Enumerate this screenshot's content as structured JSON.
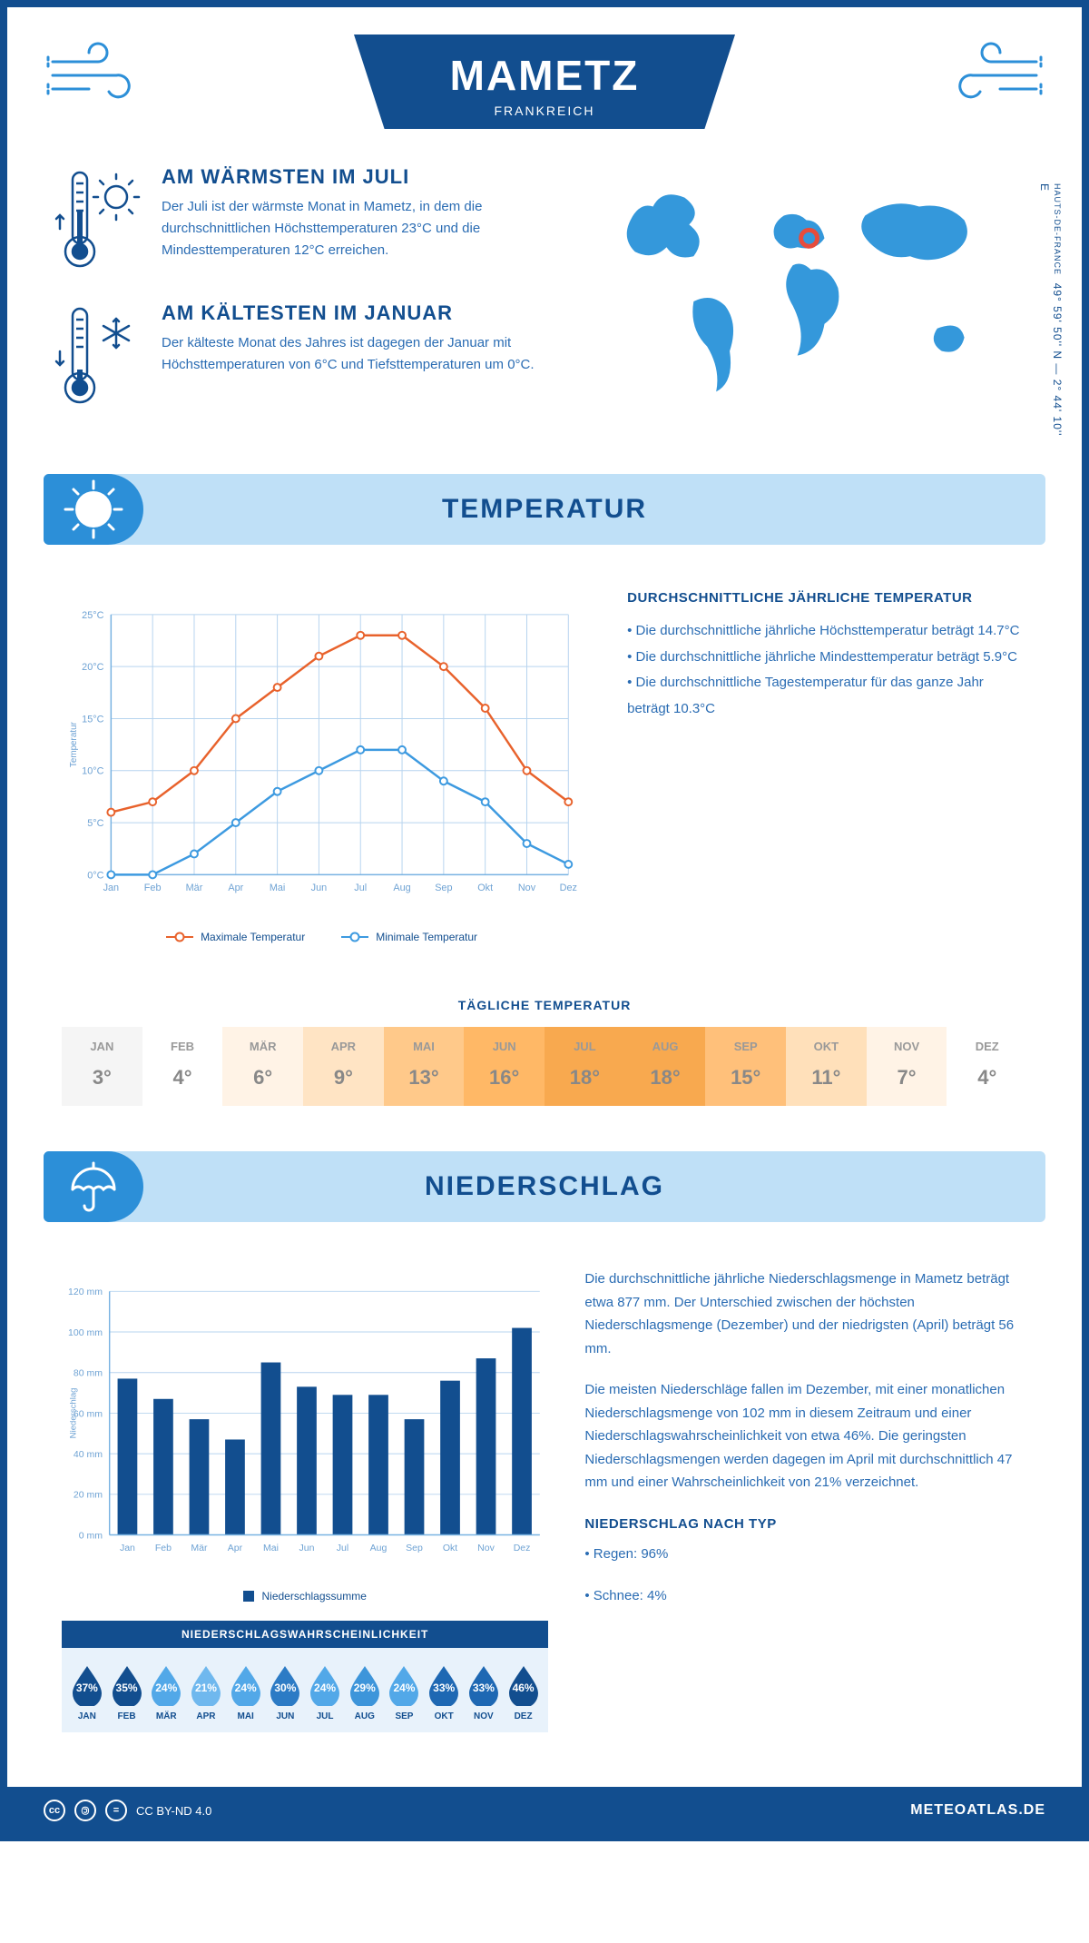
{
  "header": {
    "title": "MAMETZ",
    "subtitle": "FRANKREICH"
  },
  "location": {
    "coords": "49° 59' 50'' N — 2° 44' 10'' E",
    "region": "HAUTS-DE-FRANCE",
    "map_marker_color": "#e74c3c",
    "map_land_color": "#3498db"
  },
  "facts": {
    "warm": {
      "title": "AM WÄRMSTEN IM JULI",
      "text": "Der Juli ist der wärmste Monat in Mametz, in dem die durchschnittlichen Höchsttemperaturen 23°C und die Mindesttemperaturen 12°C erreichen."
    },
    "cold": {
      "title": "AM KÄLTESTEN IM JANUAR",
      "text": "Der kälteste Monat des Jahres ist dagegen der Januar mit Höchsttemperaturen von 6°C und Tiefsttemperaturen um 0°C."
    }
  },
  "temperature": {
    "section_title": "TEMPERATUR",
    "desc_title": "DURCHSCHNITTLICHE JÄHRLICHE TEMPERATUR",
    "bullets": [
      "• Die durchschnittliche jährliche Höchsttemperatur beträgt 14.7°C",
      "• Die durchschnittliche jährliche Mindesttemperatur beträgt 5.9°C",
      "• Die durchschnittliche Tagestemperatur für das ganze Jahr beträgt 10.3°C"
    ],
    "chart": {
      "ylabel": "Temperatur",
      "months": [
        "Jan",
        "Feb",
        "Mär",
        "Apr",
        "Mai",
        "Jun",
        "Jul",
        "Aug",
        "Sep",
        "Okt",
        "Nov",
        "Dez"
      ],
      "ylim": [
        0,
        25
      ],
      "ytick_step": 5,
      "max_series": {
        "label": "Maximale Temperatur",
        "color": "#e8622c",
        "values": [
          6,
          7,
          10,
          15,
          18,
          21,
          23,
          23,
          20,
          16,
          10,
          7
        ]
      },
      "min_series": {
        "label": "Minimale Temperatur",
        "color": "#3d9ae0",
        "values": [
          0,
          0,
          2,
          5,
          8,
          10,
          12,
          12,
          9,
          7,
          3,
          1
        ]
      },
      "grid_color": "#b7d4ef",
      "axis_color": "#79b3e2",
      "line_width": 2.5,
      "marker_size": 4
    },
    "daily": {
      "title": "TÄGLICHE TEMPERATUR",
      "months": [
        "JAN",
        "FEB",
        "MÄR",
        "APR",
        "MAI",
        "JUN",
        "JUL",
        "AUG",
        "SEP",
        "OKT",
        "NOV",
        "DEZ"
      ],
      "values": [
        "3°",
        "4°",
        "6°",
        "9°",
        "13°",
        "16°",
        "18°",
        "18°",
        "15°",
        "11°",
        "7°",
        "4°"
      ],
      "colors": [
        "#f5f5f5",
        "#ffffff",
        "#fff3e6",
        "#ffe4c4",
        "#ffc98a",
        "#ffb866",
        "#f8a94f",
        "#f8a94f",
        "#ffc07a",
        "#ffe0ba",
        "#fff3e6",
        "#ffffff"
      ]
    }
  },
  "precipitation": {
    "section_title": "NIEDERSCHLAG",
    "paragraphs": [
      "Die durchschnittliche jährliche Niederschlagsmenge in Mametz beträgt etwa 877 mm. Der Unterschied zwischen der höchsten Niederschlagsmenge (Dezember) und der niedrigsten (April) beträgt 56 mm.",
      "Die meisten Niederschläge fallen im Dezember, mit einer monatlichen Niederschlagsmenge von 102 mm in diesem Zeitraum und einer Niederschlagswahrscheinlichkeit von etwa 46%. Die geringsten Niederschlagsmengen werden dagegen im April mit durchschnittlich 47 mm und einer Wahrscheinlichkeit von 21% verzeichnet."
    ],
    "type_title": "NIEDERSCHLAG NACH TYP",
    "type_bullets": [
      "• Regen: 96%",
      "• Schnee: 4%"
    ],
    "chart": {
      "ylabel": "Niederschlag",
      "legend": "Niederschlagssumme",
      "months": [
        "Jan",
        "Feb",
        "Mär",
        "Apr",
        "Mai",
        "Jun",
        "Jul",
        "Aug",
        "Sep",
        "Okt",
        "Nov",
        "Dez"
      ],
      "values": [
        77,
        67,
        57,
        47,
        85,
        73,
        69,
        69,
        57,
        76,
        87,
        102
      ],
      "ylim": [
        0,
        120
      ],
      "ytick_step": 20,
      "bar_color": "#124e8f",
      "grid_color": "#b7d4ef",
      "axis_color": "#79b3e2",
      "bar_width": 0.55
    },
    "probability": {
      "title": "NIEDERSCHLAGSWAHRSCHEINLICHKEIT",
      "months": [
        "JAN",
        "FEB",
        "MÄR",
        "APR",
        "MAI",
        "JUN",
        "JUL",
        "AUG",
        "SEP",
        "OKT",
        "NOV",
        "DEZ"
      ],
      "percents": [
        "37%",
        "35%",
        "24%",
        "21%",
        "24%",
        "30%",
        "24%",
        "29%",
        "24%",
        "33%",
        "33%",
        "46%"
      ],
      "colors": [
        "#124e8f",
        "#124e8f",
        "#52a8e8",
        "#6fb8ee",
        "#52a8e8",
        "#2c7bc5",
        "#52a8e8",
        "#3d95da",
        "#52a8e8",
        "#1e68b3",
        "#1e68b3",
        "#124e8f"
      ]
    }
  },
  "footer": {
    "license": "CC BY-ND 4.0",
    "brand": "METEOATLAS.DE"
  },
  "colors": {
    "primary": "#124e8f",
    "light_blue": "#bfe0f7",
    "mid_blue": "#2c8fd8"
  }
}
